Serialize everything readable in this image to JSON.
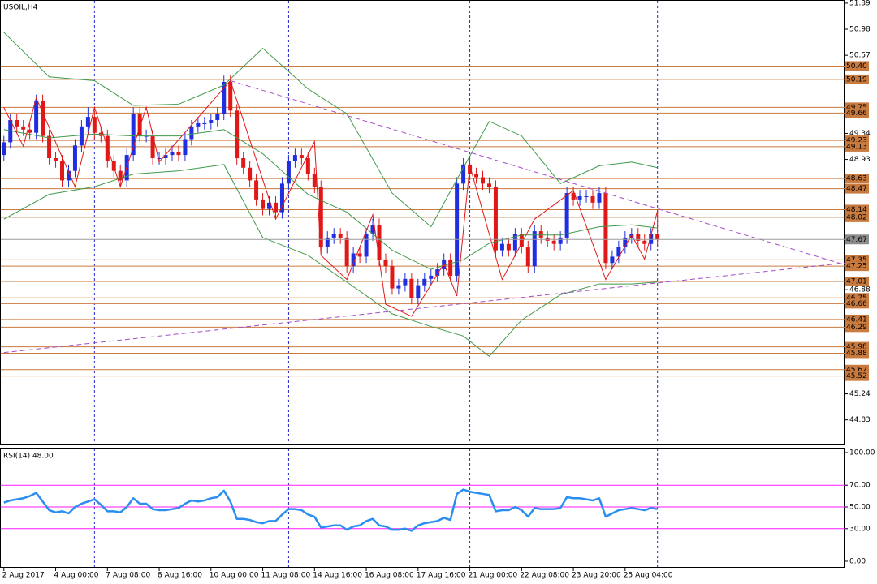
{
  "chart_data": [
    {
      "type": "candlestick",
      "title": "USOIL,H4",
      "xlim": [
        -0.6,
        129.9
      ],
      "ylim": [
        44.43,
        51.44
      ],
      "yticks": [
        51.39,
        50.98,
        50.57,
        49.34,
        48.93,
        46.88,
        45.24,
        44.83
      ],
      "open": [
        49.0,
        49.2,
        49.55,
        49.45,
        49.4,
        49.35,
        49.85,
        49.3,
        48.95,
        48.9,
        48.6,
        48.75,
        49.15,
        49.45,
        49.6,
        49.35,
        49.3,
        48.9,
        48.75,
        48.6,
        49.0,
        49.65,
        49.3,
        49.3,
        48.95,
        48.95,
        49.0,
        49.05,
        49.0,
        49.25,
        49.45,
        49.5,
        49.5,
        49.55,
        49.65,
        50.15,
        49.7,
        48.95,
        48.8,
        48.6,
        48.3,
        48.15,
        48.25,
        48.1,
        48.55,
        48.9,
        49.0,
        48.95,
        48.7,
        48.5,
        47.55,
        47.7,
        47.75,
        47.7,
        47.25,
        47.45,
        47.4,
        47.75,
        47.9,
        47.35,
        47.25,
        46.9,
        46.95,
        47.05,
        46.75,
        46.95,
        47.05,
        47.1,
        47.2,
        47.35,
        47.1,
        48.55,
        48.85,
        48.7,
        48.65,
        48.55,
        48.5,
        47.5,
        47.6,
        47.5,
        47.75,
        47.55,
        47.25,
        47.8,
        47.7,
        47.65,
        47.6,
        47.7,
        48.4,
        48.3,
        48.35,
        48.35,
        48.25,
        48.4,
        47.3,
        47.4,
        47.55,
        47.7,
        47.75,
        47.65,
        47.6,
        47.75
      ],
      "high": [
        49.3,
        49.65,
        49.65,
        49.55,
        49.5,
        49.95,
        49.95,
        49.4,
        49.05,
        49.0,
        48.85,
        49.25,
        49.55,
        49.75,
        49.7,
        49.45,
        49.4,
        49.0,
        48.85,
        49.1,
        49.75,
        49.75,
        49.4,
        49.4,
        49.05,
        49.1,
        49.15,
        49.15,
        49.35,
        49.55,
        49.6,
        49.6,
        49.65,
        49.75,
        50.25,
        50.25,
        49.8,
        49.05,
        48.9,
        48.7,
        48.4,
        48.35,
        48.35,
        48.65,
        49.0,
        49.1,
        49.1,
        49.05,
        48.8,
        48.6,
        47.8,
        47.85,
        47.85,
        47.8,
        47.55,
        47.55,
        47.85,
        48.0,
        48.0,
        47.45,
        47.35,
        47.05,
        47.15,
        47.15,
        47.05,
        47.15,
        47.2,
        47.3,
        47.45,
        47.45,
        48.65,
        48.95,
        48.95,
        48.8,
        48.75,
        48.65,
        48.6,
        47.7,
        47.7,
        47.85,
        47.85,
        47.65,
        47.9,
        47.9,
        47.8,
        47.75,
        47.8,
        48.5,
        48.5,
        48.45,
        48.45,
        48.45,
        48.5,
        48.5,
        47.5,
        47.65,
        47.8,
        47.85,
        47.85,
        47.75,
        47.85,
        48.14
      ],
      "low": [
        48.9,
        49.1,
        49.35,
        49.3,
        49.25,
        49.25,
        49.2,
        48.85,
        48.8,
        48.5,
        48.5,
        48.65,
        49.05,
        49.35,
        49.25,
        49.2,
        48.8,
        48.65,
        48.5,
        48.5,
        48.9,
        49.2,
        49.2,
        48.85,
        48.85,
        48.85,
        48.9,
        48.9,
        48.9,
        49.15,
        49.35,
        49.4,
        49.4,
        49.45,
        49.55,
        49.6,
        48.85,
        48.7,
        48.5,
        48.2,
        48.05,
        48.05,
        48.0,
        48.0,
        48.45,
        48.8,
        48.85,
        48.6,
        48.4,
        47.45,
        47.45,
        47.6,
        47.6,
        47.15,
        47.15,
        47.3,
        47.3,
        47.65,
        47.25,
        47.15,
        46.8,
        46.8,
        46.85,
        46.65,
        46.65,
        46.85,
        46.95,
        47.0,
        47.1,
        47.0,
        47.0,
        48.45,
        48.6,
        48.55,
        48.45,
        48.4,
        47.4,
        47.4,
        47.4,
        47.4,
        47.45,
        47.15,
        47.15,
        47.6,
        47.55,
        47.5,
        47.5,
        47.6,
        48.2,
        48.2,
        48.25,
        48.15,
        48.15,
        47.2,
        47.2,
        47.3,
        47.45,
        47.6,
        47.55,
        47.5,
        47.5,
        47.57
      ],
      "close": [
        49.2,
        49.55,
        49.45,
        49.4,
        49.35,
        49.85,
        49.3,
        48.95,
        48.9,
        48.6,
        48.75,
        49.15,
        49.45,
        49.6,
        49.35,
        49.3,
        48.9,
        48.75,
        48.6,
        49.0,
        49.65,
        49.3,
        49.3,
        48.95,
        48.95,
        49.0,
        49.05,
        49.0,
        49.25,
        49.45,
        49.5,
        49.5,
        49.55,
        49.65,
        50.15,
        49.7,
        48.95,
        48.8,
        48.6,
        48.3,
        48.15,
        48.25,
        48.1,
        48.55,
        48.9,
        49.0,
        48.95,
        48.7,
        48.5,
        47.55,
        47.7,
        47.75,
        47.7,
        47.25,
        47.45,
        47.4,
        47.75,
        47.9,
        47.35,
        47.25,
        46.9,
        46.95,
        47.05,
        46.75,
        46.95,
        47.05,
        47.1,
        47.2,
        47.35,
        47.1,
        48.55,
        48.85,
        48.7,
        48.65,
        48.55,
        48.5,
        47.5,
        47.6,
        47.5,
        47.75,
        47.55,
        47.25,
        47.8,
        47.7,
        47.65,
        47.6,
        47.7,
        48.4,
        48.3,
        48.35,
        48.35,
        48.25,
        48.4,
        47.3,
        47.4,
        47.55,
        47.7,
        47.75,
        47.65,
        47.6,
        47.75,
        47.67
      ],
      "up_color": "#1e2ee0",
      "down_color": "#e01818",
      "levels": [
        {
          "value": 50.4,
          "label": "50.40"
        },
        {
          "value": 50.19,
          "label": "50.19"
        },
        {
          "value": 49.75,
          "label": "49.75"
        },
        {
          "value": 49.66,
          "label": "49.66"
        },
        {
          "value": 49.23,
          "label": "49.23"
        },
        {
          "value": 49.13,
          "label": "49.13"
        },
        {
          "value": 48.63,
          "label": "48.63"
        },
        {
          "value": 48.47,
          "label": "48.47"
        },
        {
          "value": 48.14,
          "label": "48.14"
        },
        {
          "value": 48.02,
          "label": "48.02"
        },
        {
          "value": 47.35,
          "label": "47.35"
        },
        {
          "value": 47.25,
          "label": "47.25"
        },
        {
          "value": 47.01,
          "label": "47.01"
        },
        {
          "value": 46.75,
          "label": "46.75"
        },
        {
          "value": 46.66,
          "label": "46.66"
        },
        {
          "value": 46.41,
          "label": "46.41"
        },
        {
          "value": 46.29,
          "label": "46.29"
        },
        {
          "value": 45.98,
          "label": "45.98"
        },
        {
          "value": 45.88,
          "label": "45.88"
        },
        {
          "value": 45.62,
          "label": "45.62"
        },
        {
          "value": 45.52,
          "label": "45.52"
        }
      ],
      "level_color": "#c97a3e",
      "last_price": {
        "value": 47.67,
        "label": "47.67"
      },
      "separators": [
        14,
        44,
        72,
        101
      ],
      "separator_color": "#2727d0",
      "overlays": [
        {
          "color": "#3f9a4a",
          "x": [
            0,
            7,
            14,
            20,
            27,
            34,
            40,
            47,
            53,
            60,
            66,
            71,
            75,
            80,
            86,
            92,
            97,
            101
          ],
          "values": [
            50.93,
            50.23,
            50.17,
            49.78,
            49.8,
            50.1,
            50.68,
            50.04,
            49.65,
            48.4,
            47.87,
            48.8,
            49.53,
            49.3,
            48.55,
            48.83,
            48.89,
            48.8
          ]
        },
        {
          "color": "#3f9a4a",
          "x": [
            0,
            7,
            14,
            20,
            27,
            34,
            40,
            47,
            53,
            60,
            66,
            71,
            75,
            80,
            86,
            92,
            97,
            101
          ],
          "values": [
            49.4,
            49.27,
            49.33,
            49.3,
            49.3,
            49.4,
            49.02,
            48.38,
            48.1,
            47.5,
            47.2,
            47.35,
            47.61,
            47.74,
            47.74,
            47.87,
            47.9,
            47.85
          ]
        },
        {
          "color": "#3f9a4a",
          "x": [
            0,
            7,
            14,
            20,
            27,
            34,
            40,
            47,
            53,
            60,
            66,
            71,
            75,
            80,
            86,
            92,
            97,
            101
          ],
          "values": [
            47.99,
            48.38,
            48.5,
            48.7,
            48.75,
            48.85,
            47.7,
            47.42,
            47.0,
            46.5,
            46.3,
            46.15,
            45.83,
            46.4,
            46.8,
            46.97,
            46.97,
            47.0
          ]
        },
        {
          "color": "#e01818",
          "x": [
            0,
            3,
            5,
            11,
            14,
            18,
            22,
            24,
            35,
            42,
            48,
            49,
            53,
            57,
            59,
            63,
            68,
            70,
            72,
            77,
            82,
            88,
            93,
            97,
            99,
            101
          ],
          "values": [
            49.75,
            49.14,
            49.9,
            48.5,
            49.75,
            48.5,
            49.75,
            48.89,
            50.17,
            47.99,
            49.21,
            47.42,
            47.04,
            48.06,
            46.65,
            46.46,
            47.29,
            46.78,
            48.83,
            47.04,
            47.99,
            48.44,
            47.04,
            47.74,
            47.36,
            48.12
          ]
        },
        {
          "color": "#a64cc8",
          "dashed": true,
          "x": [
            35,
            130
          ],
          "values": [
            50.17,
            47.27
          ]
        },
        {
          "color": "#a64cc8",
          "dashed": true,
          "x": [
            0,
            130
          ],
          "values": [
            45.89,
            47.3
          ]
        }
      ]
    },
    {
      "type": "line",
      "title": "RSI(14) 48.00",
      "color": "#2a8ef0",
      "ylim": [
        -6,
        104.5
      ],
      "yticks": [
        {
          "value": 100,
          "label": "100.00"
        },
        {
          "value": 70,
          "label": "70.00"
        },
        {
          "value": 50,
          "label": "50.00"
        },
        {
          "value": 30,
          "label": "30.00"
        },
        {
          "value": 0,
          "label": "0.00"
        }
      ],
      "levels": [
        70,
        50,
        30
      ],
      "level_color": "#ff1aff",
      "values": [
        54,
        56,
        57,
        58,
        60,
        63,
        55,
        47,
        45,
        46,
        44,
        50,
        53,
        55,
        57,
        52,
        46,
        46,
        45,
        50,
        58,
        53,
        53,
        48,
        47,
        47,
        48,
        49,
        53,
        56,
        55,
        56,
        58,
        59,
        65,
        55,
        39,
        39,
        38,
        36,
        35,
        37,
        37,
        43,
        48,
        48,
        47,
        43,
        41,
        31,
        32,
        33,
        33,
        29,
        32,
        33,
        37,
        39,
        33,
        32,
        29,
        29,
        30,
        28,
        33,
        35,
        36,
        37,
        40,
        38,
        62,
        66,
        64,
        63,
        62,
        61,
        46,
        47,
        47,
        50,
        47,
        41,
        49,
        48,
        48,
        48,
        49,
        59,
        58,
        58,
        57,
        56,
        58,
        41,
        44,
        47,
        48,
        49,
        48,
        47,
        49,
        48
      ],
      "xticks": [
        {
          "value": 0,
          "label": "2 Aug 2017"
        },
        {
          "value": 8,
          "label": "4 Aug 00:00"
        },
        {
          "value": 16,
          "label": "7 Aug 08:00"
        },
        {
          "value": 24,
          "label": "8 Aug 16:00"
        },
        {
          "value": 32,
          "label": "10 Aug 00:00"
        },
        {
          "value": 40,
          "label": "11 Aug 08:00"
        },
        {
          "value": 48,
          "label": "14 Aug 16:00"
        },
        {
          "value": 56,
          "label": "16 Aug 08:00"
        },
        {
          "value": 64,
          "label": "17 Aug 16:00"
        },
        {
          "value": 72,
          "label": "21 Aug 00:00"
        },
        {
          "value": 80,
          "label": "22 Aug 08:00"
        },
        {
          "value": 88,
          "label": "23 Aug 20:00"
        },
        {
          "value": 96,
          "label": "25 Aug 04:00"
        }
      ]
    }
  ]
}
